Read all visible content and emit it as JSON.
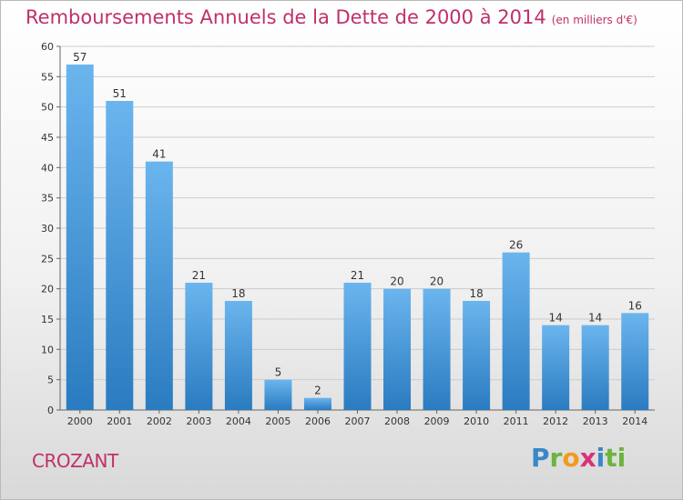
{
  "header": {
    "title": "Remboursements Annuels de la Dette de 2000 à 2014",
    "subtitle": "(en milliers d'€)"
  },
  "footer": {
    "commune": "CROZANT",
    "logo": "Proxiti",
    "logo_letters": [
      "P",
      "r",
      "o",
      "x",
      "i",
      "ti"
    ]
  },
  "colors": {
    "title": "#c0306a",
    "bar_top": "#6bb5ee",
    "bar_bottom": "#2a7bc0",
    "grid": "#cccccc"
  },
  "chart_data": {
    "type": "bar",
    "title": "Remboursements Annuels de la Dette de 2000 à 2014",
    "xlabel": "",
    "ylabel": "",
    "unit": "milliers d'€",
    "categories": [
      "2000",
      "2001",
      "2002",
      "2003",
      "2004",
      "2005",
      "2006",
      "2007",
      "2008",
      "2009",
      "2010",
      "2011",
      "2012",
      "2013",
      "2014"
    ],
    "values": [
      57,
      51,
      41,
      21,
      18,
      5,
      2,
      21,
      20,
      20,
      18,
      26,
      14,
      14,
      16
    ],
    "ylim": [
      0,
      60
    ],
    "yticks": [
      0,
      5,
      10,
      15,
      20,
      25,
      30,
      35,
      40,
      45,
      50,
      55,
      60
    ],
    "grid": true,
    "data_labels": true
  }
}
